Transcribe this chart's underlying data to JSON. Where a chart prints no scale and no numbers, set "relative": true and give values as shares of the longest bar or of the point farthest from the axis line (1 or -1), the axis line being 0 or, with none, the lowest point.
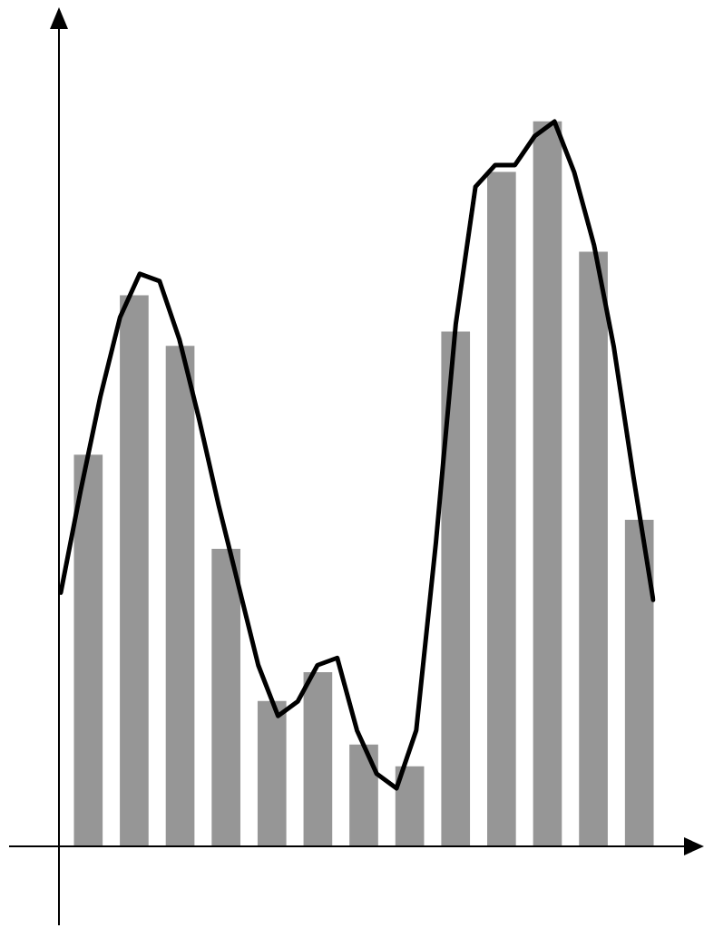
{
  "chart_data": [
    {
      "type": "bar",
      "relative": true,
      "tick_labels": false,
      "categories": [
        null,
        null,
        null,
        null,
        null,
        null,
        null,
        null,
        null,
        null,
        null,
        null,
        null
      ],
      "color": "#969696",
      "values": [
        0.54,
        0.76,
        0.69,
        0.41,
        0.2,
        0.24,
        0.14,
        0.11,
        0.71,
        0.93,
        1,
        0.82,
        0.45
      ]
    },
    {
      "type": "line",
      "relative": true,
      "tick_labels": false,
      "marker": "none",
      "line_style": "solid",
      "categories": [
        null,
        null,
        null,
        null,
        null,
        null,
        null,
        null,
        null,
        null,
        null,
        null,
        null,
        null,
        null,
        null,
        null,
        null,
        null,
        null,
        null,
        null,
        null,
        null,
        null,
        null,
        null,
        null,
        null,
        null,
        null
      ],
      "color": "#000000",
      "values": [
        0.35,
        0.49,
        0.62,
        0.73,
        0.79,
        0.78,
        0.7,
        0.59,
        0.47,
        0.36,
        0.25,
        0.18,
        0.2,
        0.25,
        0.26,
        0.16,
        0.1,
        0.08,
        0.16,
        0.42,
        0.72,
        0.91,
        0.94,
        0.94,
        0.98,
        1,
        0.93,
        0.83,
        0.69,
        0.51,
        0.34
      ]
    }
  ]
}
